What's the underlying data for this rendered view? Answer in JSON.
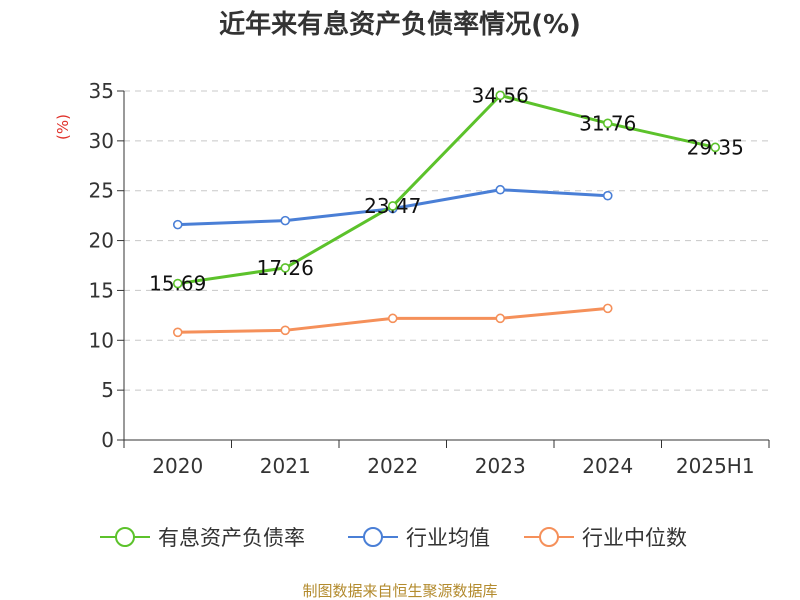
{
  "chart_data": {
    "type": "line",
    "title": "近年来有息资产负债率情况(%)",
    "ylabel": "(%)",
    "xlabel": "",
    "categories": [
      "2020",
      "2021",
      "2022",
      "2023",
      "2024",
      "2025H1"
    ],
    "ylim": [
      0,
      35
    ],
    "yticks": [
      0,
      5,
      10,
      15,
      20,
      25,
      30,
      35
    ],
    "grid": true,
    "legend_position": "bottom",
    "series": [
      {
        "name": "有息资产负债率",
        "color": "#5cc22b",
        "values": [
          15.69,
          17.26,
          23.47,
          34.56,
          31.76,
          29.35
        ],
        "labels": [
          "15.69",
          "17.26",
          "23.47",
          "34.56",
          "31.76",
          "29.35"
        ]
      },
      {
        "name": "行业均值",
        "color": "#4a7fd6",
        "values": [
          21.6,
          22.0,
          23.2,
          25.1,
          24.5,
          null
        ]
      },
      {
        "name": "行业中位数",
        "color": "#f5905a",
        "values": [
          10.8,
          11.0,
          12.2,
          12.2,
          13.2,
          null
        ]
      }
    ]
  },
  "source": "制图数据来自恒生聚源数据库"
}
